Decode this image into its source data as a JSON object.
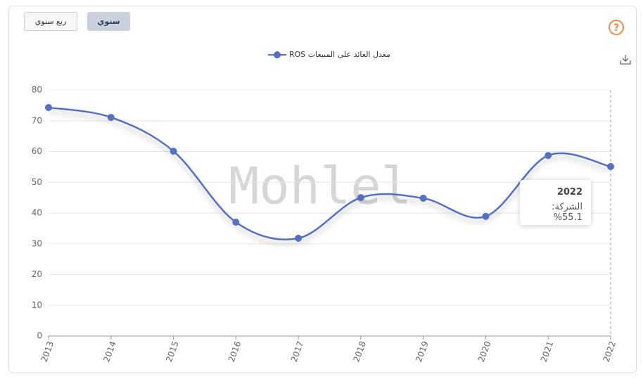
{
  "controls": {
    "buttons": [
      "ربع سنوي",
      "سنوي"
    ],
    "active": 1
  },
  "watermark": "Mohlel",
  "tooltip": {
    "label": "الشركة:",
    "value_label": "%55.1",
    "index": 9
  },
  "chart_data": {
    "type": "line",
    "smooth": true,
    "categories": [
      "2013",
      "2014",
      "2015",
      "2016",
      "2017",
      "2018",
      "2019",
      "2020",
      "2021",
      "2022"
    ],
    "series": [
      {
        "name": "معدل العائد على المبيعات ROS",
        "color": "#5470c6",
        "values": [
          74.3,
          71.1,
          60.1,
          37.0,
          31.8,
          45.0,
          44.8,
          38.9,
          58.7,
          55.1
        ]
      }
    ],
    "ylim": [
      0,
      80
    ],
    "yticks": [
      0,
      10,
      20,
      30,
      40,
      50,
      60,
      70,
      80
    ],
    "grid": true,
    "legend": "top"
  }
}
